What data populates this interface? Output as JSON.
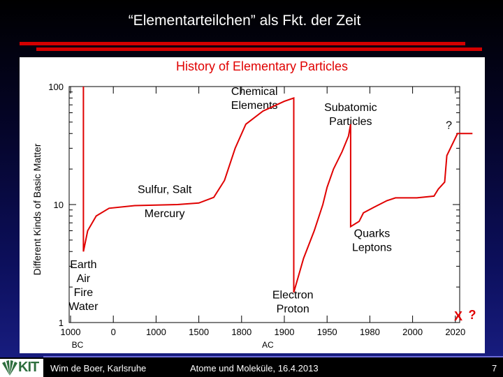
{
  "slide": {
    "title": "“Elementarteilchen” als Fkt. der Zeit",
    "footer": {
      "logo_text": "KIT",
      "author": "Wim de Boer, Karlsruhe",
      "talk": "Atome und Moleküle, 16.4.2013",
      "page": "7"
    },
    "colors": {
      "accent_red": "#d40000",
      "chart_red": "#e00000",
      "footer_line": "#6b6bd8"
    }
  },
  "chart_data": {
    "type": "line",
    "title": "History of Elementary Particles",
    "ylabel": "Different Kinds of Basic Matter",
    "yscale": "log",
    "ylim": [
      1,
      100
    ],
    "y_ticks": [
      {
        "value": 100,
        "label": "100"
      },
      {
        "value": 10,
        "label": "10"
      },
      {
        "value": 1,
        "label": "1"
      }
    ],
    "x_ticks": [
      {
        "label": "1000",
        "pos": 0
      },
      {
        "label": "0",
        "pos": 1
      },
      {
        "label": "1000",
        "pos": 2
      },
      {
        "label": "1500",
        "pos": 3
      },
      {
        "label": "1800",
        "pos": 4
      },
      {
        "label": "1900",
        "pos": 5
      },
      {
        "label": "1950",
        "pos": 6
      },
      {
        "label": "1980",
        "pos": 7
      },
      {
        "label": "2000",
        "pos": 8
      },
      {
        "label": "2020",
        "pos": 9
      }
    ],
    "era_labels": [
      {
        "text": "BC",
        "pos": 0
      },
      {
        "text": "AC",
        "pos": 4.45
      }
    ],
    "series": [
      {
        "points": [
          [
            0.3,
            100
          ],
          [
            0.3,
            4
          ],
          [
            0.4,
            6
          ],
          [
            0.6,
            8
          ],
          [
            0.9,
            9.3
          ],
          [
            1.5,
            9.8
          ],
          [
            2.5,
            10
          ],
          [
            3.0,
            10.3
          ],
          [
            3.35,
            11.5
          ],
          [
            3.6,
            16
          ],
          [
            3.85,
            30
          ],
          [
            4.1,
            48
          ],
          [
            4.5,
            62
          ],
          [
            5.0,
            75
          ],
          [
            5.22,
            80
          ],
          [
            5.22,
            1.8
          ],
          [
            5.45,
            3.5
          ],
          [
            5.7,
            6
          ],
          [
            5.9,
            10
          ],
          [
            6.0,
            14
          ],
          [
            6.15,
            20
          ],
          [
            6.35,
            28
          ],
          [
            6.5,
            38
          ],
          [
            6.55,
            48
          ],
          [
            6.55,
            6.5
          ],
          [
            6.75,
            7.2
          ],
          [
            6.85,
            8.5
          ],
          [
            7.1,
            9.5
          ],
          [
            7.4,
            10.8
          ],
          [
            7.6,
            11.4
          ],
          [
            8.1,
            11.4
          ],
          [
            8.5,
            11.8
          ],
          [
            8.6,
            13.5
          ],
          [
            8.75,
            15.5
          ],
          [
            8.8,
            26
          ],
          [
            9.05,
            40
          ],
          [
            9.4,
            40
          ]
        ]
      }
    ],
    "annotations": [
      {
        "lines": [
          "Earth",
          "Air",
          "Fire",
          "Water"
        ],
        "x": 0.3,
        "y": 2.9
      },
      {
        "lines": [
          "Sulfur, Salt"
        ],
        "x": 2.2,
        "y": 12.5
      },
      {
        "lines": [
          "Mercury"
        ],
        "x": 2.2,
        "y": 7.8
      },
      {
        "lines": [
          "Chemical",
          "Elements"
        ],
        "x": 4.3,
        "y": 85
      },
      {
        "lines": [
          "Electron",
          "Proton"
        ],
        "x": 5.2,
        "y": 1.6
      },
      {
        "lines": [
          "Subatomic",
          "Particles"
        ],
        "x": 6.55,
        "y": 62
      },
      {
        "lines": [
          "Quarks",
          "Leptons"
        ],
        "x": 7.05,
        "y": 5.3
      },
      {
        "lines": [
          "?"
        ],
        "x": 8.85,
        "y": 44
      }
    ],
    "corner_marks": [
      "X",
      "?"
    ]
  }
}
